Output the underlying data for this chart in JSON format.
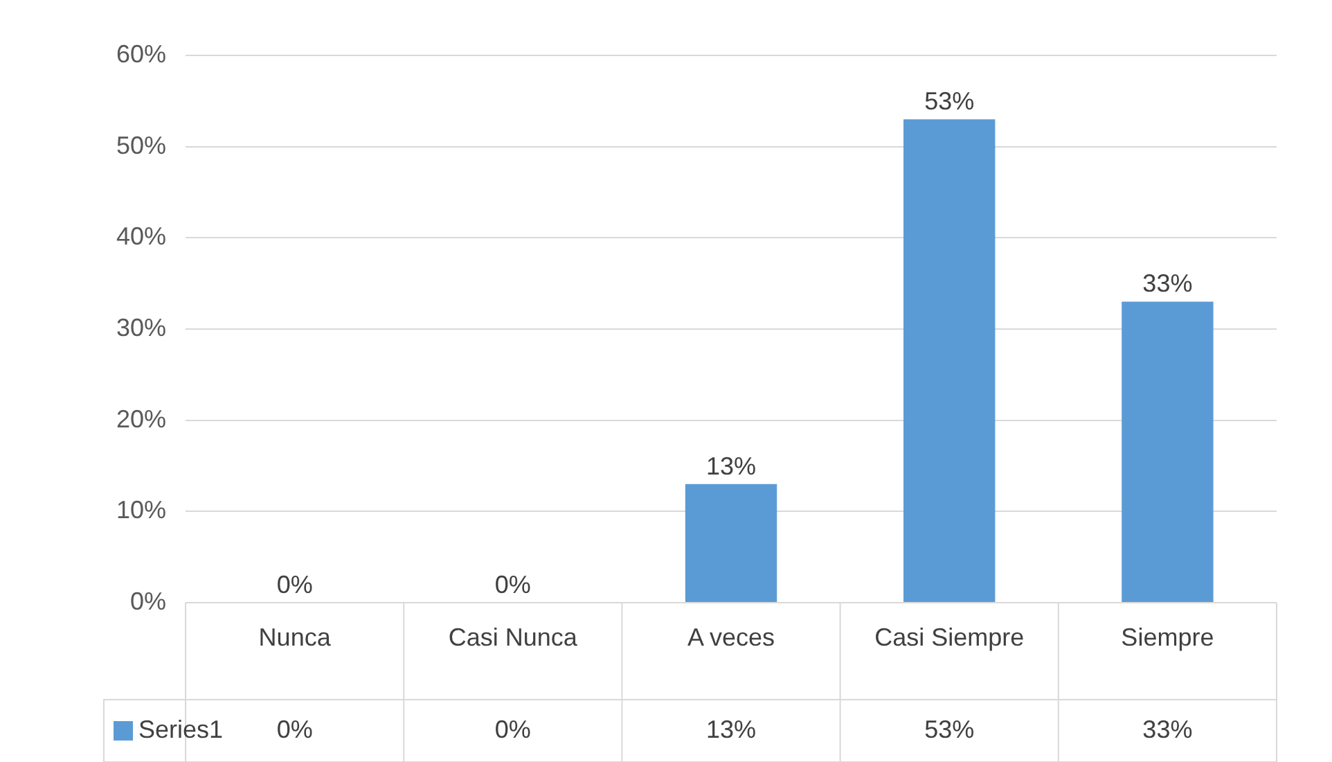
{
  "chart_data": {
    "type": "bar",
    "categories": [
      "Nunca",
      "Casi Nunca",
      "A veces",
      "Casi Siempre",
      "Siempre"
    ],
    "series": [
      {
        "name": "Series1",
        "color": "#5b9bd5",
        "values": [
          0,
          0,
          13,
          53,
          33
        ]
      }
    ],
    "value_labels": [
      "0%",
      "0%",
      "13%",
      "53%",
      "33%"
    ],
    "ylim": [
      0,
      60
    ],
    "yticks": [
      {
        "value": 0,
        "label": "0%"
      },
      {
        "value": 10,
        "label": "10%"
      },
      {
        "value": 20,
        "label": "20%"
      },
      {
        "value": 30,
        "label": "30%"
      },
      {
        "value": 40,
        "label": "40%"
      },
      {
        "value": 50,
        "label": "50%"
      },
      {
        "value": 60,
        "label": "60%"
      }
    ],
    "grid": "y",
    "legend": "bottom"
  }
}
